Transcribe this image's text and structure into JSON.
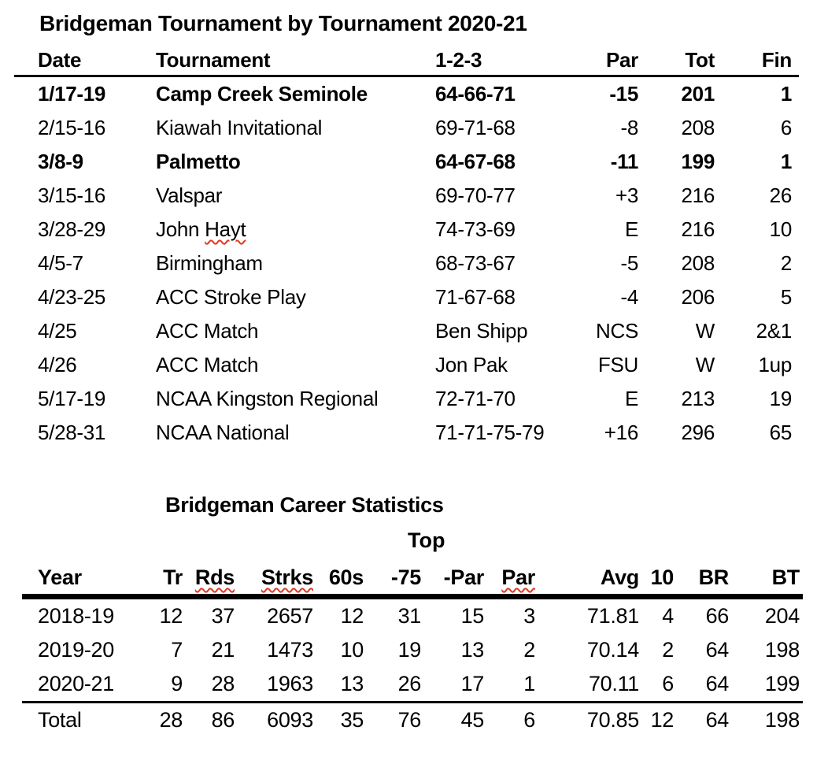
{
  "colors": {
    "background": "#ffffff",
    "text": "#000000",
    "rule": "#000000",
    "spellcheck_squiggle": "#e1371f"
  },
  "tournament_table": {
    "title": "Bridgeman Tournament by Tournament 2020-21",
    "columns": [
      "Date",
      "Tournament",
      "1-2-3",
      "Par",
      "Tot",
      "Fin"
    ],
    "rows": [
      {
        "date": "1/17-19",
        "tournament": "Camp Creek Seminole",
        "scores": "64-66-71",
        "par": "-15",
        "tot": "201",
        "fin": "1",
        "bold": true
      },
      {
        "date": "2/15-16",
        "tournament": "Kiawah Invitational",
        "scores": "69-71-68",
        "par": "-8",
        "tot": "208",
        "fin": "6"
      },
      {
        "date": "3/8-9",
        "tournament": "Palmetto",
        "scores": "64-67-68",
        "par": "-11",
        "tot": "199",
        "fin": "1",
        "bold": true
      },
      {
        "date": "3/15-16",
        "tournament": "Valspar",
        "scores": "69-70-77",
        "par": "+3",
        "tot": "216",
        "fin": "26"
      },
      {
        "date": "3/28-29",
        "tournament": "John Hayt",
        "misspelled": "Hayt",
        "scores": "74-73-69",
        "par": "E",
        "tot": "216",
        "fin": "10"
      },
      {
        "date": "4/5-7",
        "tournament": "Birmingham",
        "scores": "68-73-67",
        "par": "-5",
        "tot": "208",
        "fin": "2"
      },
      {
        "date": "4/23-25",
        "tournament": "ACC Stroke Play",
        "scores": "71-67-68",
        "par": "-4",
        "tot": "206",
        "fin": "5"
      },
      {
        "date": "4/25",
        "tournament": "ACC Match",
        "scores": "Ben Shipp",
        "par": "NCS",
        "tot": "W",
        "fin": "2&1"
      },
      {
        "date": "4/26",
        "tournament": "ACC Match",
        "scores": "Jon Pak",
        "par": "FSU",
        "tot": "W",
        "fin": "1up"
      },
      {
        "date": "5/17-19",
        "tournament": "NCAA Kingston Regional",
        "scores": "72-71-70",
        "par": "E",
        "tot": "213",
        "fin": "19"
      },
      {
        "date": "5/28-31",
        "tournament": "NCAA National",
        "scores": "71-71-75-79",
        "par": "+16",
        "tot": "296",
        "fin": "65"
      }
    ]
  },
  "career_table": {
    "title": "Bridgeman Career Statistics",
    "top_label": "Top",
    "columns": [
      "Year",
      "Tr",
      "Rds",
      "Strks",
      "60s",
      "-75",
      "-Par",
      "Par",
      "Avg",
      "10",
      "BR",
      "BT"
    ],
    "misspelled_columns": [
      "Rds",
      "Strks",
      "Par"
    ],
    "separator_after_row_index": 2,
    "rows": [
      [
        "2018-19",
        "12",
        "37",
        "2657",
        "12",
        "31",
        "15",
        "3",
        "71.81",
        "4",
        "66",
        "204"
      ],
      [
        "2019-20",
        "7",
        "21",
        "1473",
        "10",
        "19",
        "13",
        "2",
        "70.14",
        "2",
        "64",
        "198"
      ],
      [
        "2020-21",
        "9",
        "28",
        "1963",
        "13",
        "26",
        "17",
        "1",
        "70.11",
        "6",
        "64",
        "199"
      ],
      [
        "Total",
        "28",
        "86",
        "6093",
        "35",
        "76",
        "45",
        "6",
        "70.85",
        "12",
        "64",
        "198"
      ]
    ]
  }
}
